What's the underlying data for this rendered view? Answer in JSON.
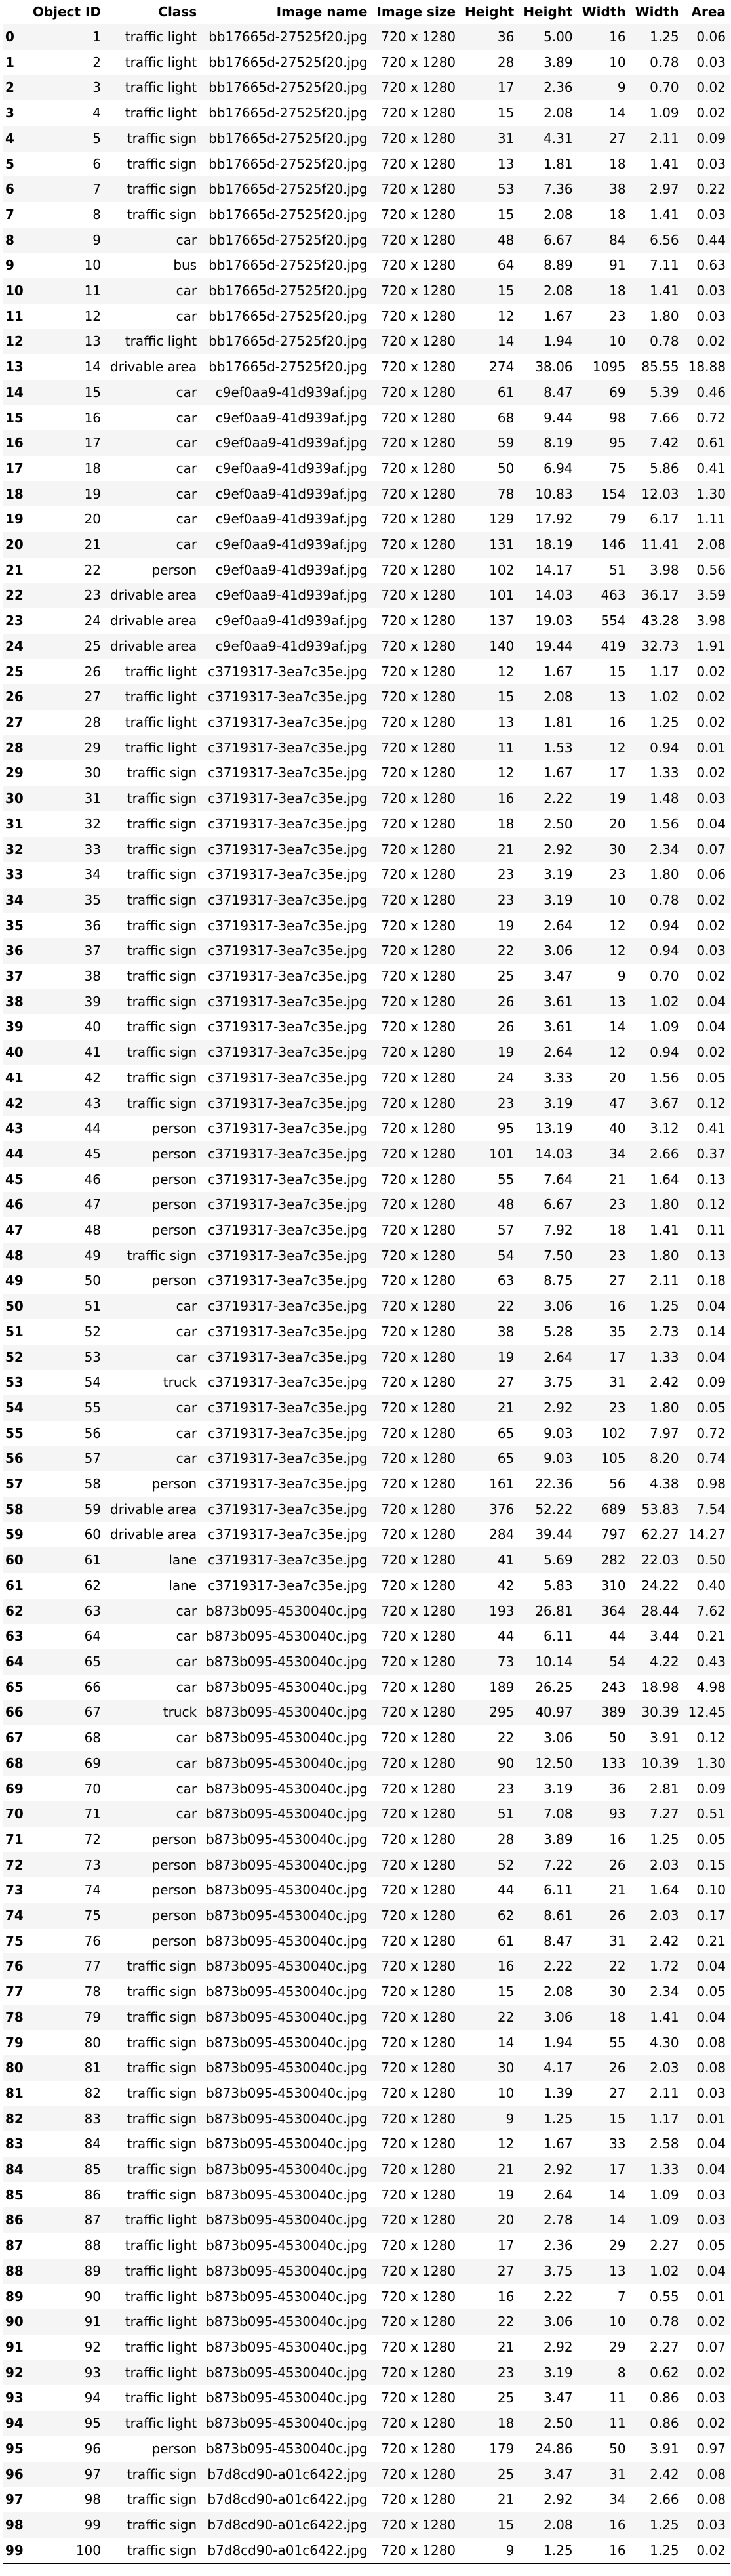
{
  "table": {
    "columns": [
      "",
      "Object ID",
      "Class",
      "Image name",
      "Image size",
      "Height",
      "Height",
      "Width",
      "Width",
      "Area"
    ],
    "rows": [
      [
        "0",
        "1",
        "traffic light",
        "bb17665d-27525f20.jpg",
        "720 x 1280",
        "36",
        "5.00",
        "16",
        "1.25",
        "0.06"
      ],
      [
        "1",
        "2",
        "traffic light",
        "bb17665d-27525f20.jpg",
        "720 x 1280",
        "28",
        "3.89",
        "10",
        "0.78",
        "0.03"
      ],
      [
        "2",
        "3",
        "traffic light",
        "bb17665d-27525f20.jpg",
        "720 x 1280",
        "17",
        "2.36",
        "9",
        "0.70",
        "0.02"
      ],
      [
        "3",
        "4",
        "traffic light",
        "bb17665d-27525f20.jpg",
        "720 x 1280",
        "15",
        "2.08",
        "14",
        "1.09",
        "0.02"
      ],
      [
        "4",
        "5",
        "traffic sign",
        "bb17665d-27525f20.jpg",
        "720 x 1280",
        "31",
        "4.31",
        "27",
        "2.11",
        "0.09"
      ],
      [
        "5",
        "6",
        "traffic sign",
        "bb17665d-27525f20.jpg",
        "720 x 1280",
        "13",
        "1.81",
        "18",
        "1.41",
        "0.03"
      ],
      [
        "6",
        "7",
        "traffic sign",
        "bb17665d-27525f20.jpg",
        "720 x 1280",
        "53",
        "7.36",
        "38",
        "2.97",
        "0.22"
      ],
      [
        "7",
        "8",
        "traffic sign",
        "bb17665d-27525f20.jpg",
        "720 x 1280",
        "15",
        "2.08",
        "18",
        "1.41",
        "0.03"
      ],
      [
        "8",
        "9",
        "car",
        "bb17665d-27525f20.jpg",
        "720 x 1280",
        "48",
        "6.67",
        "84",
        "6.56",
        "0.44"
      ],
      [
        "9",
        "10",
        "bus",
        "bb17665d-27525f20.jpg",
        "720 x 1280",
        "64",
        "8.89",
        "91",
        "7.11",
        "0.63"
      ],
      [
        "10",
        "11",
        "car",
        "bb17665d-27525f20.jpg",
        "720 x 1280",
        "15",
        "2.08",
        "18",
        "1.41",
        "0.03"
      ],
      [
        "11",
        "12",
        "car",
        "bb17665d-27525f20.jpg",
        "720 x 1280",
        "12",
        "1.67",
        "23",
        "1.80",
        "0.03"
      ],
      [
        "12",
        "13",
        "traffic light",
        "bb17665d-27525f20.jpg",
        "720 x 1280",
        "14",
        "1.94",
        "10",
        "0.78",
        "0.02"
      ],
      [
        "13",
        "14",
        "drivable area",
        "bb17665d-27525f20.jpg",
        "720 x 1280",
        "274",
        "38.06",
        "1095",
        "85.55",
        "18.88"
      ],
      [
        "14",
        "15",
        "car",
        "c9ef0aa9-41d939af.jpg",
        "720 x 1280",
        "61",
        "8.47",
        "69",
        "5.39",
        "0.46"
      ],
      [
        "15",
        "16",
        "car",
        "c9ef0aa9-41d939af.jpg",
        "720 x 1280",
        "68",
        "9.44",
        "98",
        "7.66",
        "0.72"
      ],
      [
        "16",
        "17",
        "car",
        "c9ef0aa9-41d939af.jpg",
        "720 x 1280",
        "59",
        "8.19",
        "95",
        "7.42",
        "0.61"
      ],
      [
        "17",
        "18",
        "car",
        "c9ef0aa9-41d939af.jpg",
        "720 x 1280",
        "50",
        "6.94",
        "75",
        "5.86",
        "0.41"
      ],
      [
        "18",
        "19",
        "car",
        "c9ef0aa9-41d939af.jpg",
        "720 x 1280",
        "78",
        "10.83",
        "154",
        "12.03",
        "1.30"
      ],
      [
        "19",
        "20",
        "car",
        "c9ef0aa9-41d939af.jpg",
        "720 x 1280",
        "129",
        "17.92",
        "79",
        "6.17",
        "1.11"
      ],
      [
        "20",
        "21",
        "car",
        "c9ef0aa9-41d939af.jpg",
        "720 x 1280",
        "131",
        "18.19",
        "146",
        "11.41",
        "2.08"
      ],
      [
        "21",
        "22",
        "person",
        "c9ef0aa9-41d939af.jpg",
        "720 x 1280",
        "102",
        "14.17",
        "51",
        "3.98",
        "0.56"
      ],
      [
        "22",
        "23",
        "drivable area",
        "c9ef0aa9-41d939af.jpg",
        "720 x 1280",
        "101",
        "14.03",
        "463",
        "36.17",
        "3.59"
      ],
      [
        "23",
        "24",
        "drivable area",
        "c9ef0aa9-41d939af.jpg",
        "720 x 1280",
        "137",
        "19.03",
        "554",
        "43.28",
        "3.98"
      ],
      [
        "24",
        "25",
        "drivable area",
        "c9ef0aa9-41d939af.jpg",
        "720 x 1280",
        "140",
        "19.44",
        "419",
        "32.73",
        "1.91"
      ],
      [
        "25",
        "26",
        "traffic light",
        "c3719317-3ea7c35e.jpg",
        "720 x 1280",
        "12",
        "1.67",
        "15",
        "1.17",
        "0.02"
      ],
      [
        "26",
        "27",
        "traffic light",
        "c3719317-3ea7c35e.jpg",
        "720 x 1280",
        "15",
        "2.08",
        "13",
        "1.02",
        "0.02"
      ],
      [
        "27",
        "28",
        "traffic light",
        "c3719317-3ea7c35e.jpg",
        "720 x 1280",
        "13",
        "1.81",
        "16",
        "1.25",
        "0.02"
      ],
      [
        "28",
        "29",
        "traffic light",
        "c3719317-3ea7c35e.jpg",
        "720 x 1280",
        "11",
        "1.53",
        "12",
        "0.94",
        "0.01"
      ],
      [
        "29",
        "30",
        "traffic sign",
        "c3719317-3ea7c35e.jpg",
        "720 x 1280",
        "12",
        "1.67",
        "17",
        "1.33",
        "0.02"
      ],
      [
        "30",
        "31",
        "traffic sign",
        "c3719317-3ea7c35e.jpg",
        "720 x 1280",
        "16",
        "2.22",
        "19",
        "1.48",
        "0.03"
      ],
      [
        "31",
        "32",
        "traffic sign",
        "c3719317-3ea7c35e.jpg",
        "720 x 1280",
        "18",
        "2.50",
        "20",
        "1.56",
        "0.04"
      ],
      [
        "32",
        "33",
        "traffic sign",
        "c3719317-3ea7c35e.jpg",
        "720 x 1280",
        "21",
        "2.92",
        "30",
        "2.34",
        "0.07"
      ],
      [
        "33",
        "34",
        "traffic sign",
        "c3719317-3ea7c35e.jpg",
        "720 x 1280",
        "23",
        "3.19",
        "23",
        "1.80",
        "0.06"
      ],
      [
        "34",
        "35",
        "traffic sign",
        "c3719317-3ea7c35e.jpg",
        "720 x 1280",
        "23",
        "3.19",
        "10",
        "0.78",
        "0.02"
      ],
      [
        "35",
        "36",
        "traffic sign",
        "c3719317-3ea7c35e.jpg",
        "720 x 1280",
        "19",
        "2.64",
        "12",
        "0.94",
        "0.02"
      ],
      [
        "36",
        "37",
        "traffic sign",
        "c3719317-3ea7c35e.jpg",
        "720 x 1280",
        "22",
        "3.06",
        "12",
        "0.94",
        "0.03"
      ],
      [
        "37",
        "38",
        "traffic sign",
        "c3719317-3ea7c35e.jpg",
        "720 x 1280",
        "25",
        "3.47",
        "9",
        "0.70",
        "0.02"
      ],
      [
        "38",
        "39",
        "traffic sign",
        "c3719317-3ea7c35e.jpg",
        "720 x 1280",
        "26",
        "3.61",
        "13",
        "1.02",
        "0.04"
      ],
      [
        "39",
        "40",
        "traffic sign",
        "c3719317-3ea7c35e.jpg",
        "720 x 1280",
        "26",
        "3.61",
        "14",
        "1.09",
        "0.04"
      ],
      [
        "40",
        "41",
        "traffic sign",
        "c3719317-3ea7c35e.jpg",
        "720 x 1280",
        "19",
        "2.64",
        "12",
        "0.94",
        "0.02"
      ],
      [
        "41",
        "42",
        "traffic sign",
        "c3719317-3ea7c35e.jpg",
        "720 x 1280",
        "24",
        "3.33",
        "20",
        "1.56",
        "0.05"
      ],
      [
        "42",
        "43",
        "traffic sign",
        "c3719317-3ea7c35e.jpg",
        "720 x 1280",
        "23",
        "3.19",
        "47",
        "3.67",
        "0.12"
      ],
      [
        "43",
        "44",
        "person",
        "c3719317-3ea7c35e.jpg",
        "720 x 1280",
        "95",
        "13.19",
        "40",
        "3.12",
        "0.41"
      ],
      [
        "44",
        "45",
        "person",
        "c3719317-3ea7c35e.jpg",
        "720 x 1280",
        "101",
        "14.03",
        "34",
        "2.66",
        "0.37"
      ],
      [
        "45",
        "46",
        "person",
        "c3719317-3ea7c35e.jpg",
        "720 x 1280",
        "55",
        "7.64",
        "21",
        "1.64",
        "0.13"
      ],
      [
        "46",
        "47",
        "person",
        "c3719317-3ea7c35e.jpg",
        "720 x 1280",
        "48",
        "6.67",
        "23",
        "1.80",
        "0.12"
      ],
      [
        "47",
        "48",
        "person",
        "c3719317-3ea7c35e.jpg",
        "720 x 1280",
        "57",
        "7.92",
        "18",
        "1.41",
        "0.11"
      ],
      [
        "48",
        "49",
        "traffic sign",
        "c3719317-3ea7c35e.jpg",
        "720 x 1280",
        "54",
        "7.50",
        "23",
        "1.80",
        "0.13"
      ],
      [
        "49",
        "50",
        "person",
        "c3719317-3ea7c35e.jpg",
        "720 x 1280",
        "63",
        "8.75",
        "27",
        "2.11",
        "0.18"
      ],
      [
        "50",
        "51",
        "car",
        "c3719317-3ea7c35e.jpg",
        "720 x 1280",
        "22",
        "3.06",
        "16",
        "1.25",
        "0.04"
      ],
      [
        "51",
        "52",
        "car",
        "c3719317-3ea7c35e.jpg",
        "720 x 1280",
        "38",
        "5.28",
        "35",
        "2.73",
        "0.14"
      ],
      [
        "52",
        "53",
        "car",
        "c3719317-3ea7c35e.jpg",
        "720 x 1280",
        "19",
        "2.64",
        "17",
        "1.33",
        "0.04"
      ],
      [
        "53",
        "54",
        "truck",
        "c3719317-3ea7c35e.jpg",
        "720 x 1280",
        "27",
        "3.75",
        "31",
        "2.42",
        "0.09"
      ],
      [
        "54",
        "55",
        "car",
        "c3719317-3ea7c35e.jpg",
        "720 x 1280",
        "21",
        "2.92",
        "23",
        "1.80",
        "0.05"
      ],
      [
        "55",
        "56",
        "car",
        "c3719317-3ea7c35e.jpg",
        "720 x 1280",
        "65",
        "9.03",
        "102",
        "7.97",
        "0.72"
      ],
      [
        "56",
        "57",
        "car",
        "c3719317-3ea7c35e.jpg",
        "720 x 1280",
        "65",
        "9.03",
        "105",
        "8.20",
        "0.74"
      ],
      [
        "57",
        "58",
        "person",
        "c3719317-3ea7c35e.jpg",
        "720 x 1280",
        "161",
        "22.36",
        "56",
        "4.38",
        "0.98"
      ],
      [
        "58",
        "59",
        "drivable area",
        "c3719317-3ea7c35e.jpg",
        "720 x 1280",
        "376",
        "52.22",
        "689",
        "53.83",
        "7.54"
      ],
      [
        "59",
        "60",
        "drivable area",
        "c3719317-3ea7c35e.jpg",
        "720 x 1280",
        "284",
        "39.44",
        "797",
        "62.27",
        "14.27"
      ],
      [
        "60",
        "61",
        "lane",
        "c3719317-3ea7c35e.jpg",
        "720 x 1280",
        "41",
        "5.69",
        "282",
        "22.03",
        "0.50"
      ],
      [
        "61",
        "62",
        "lane",
        "c3719317-3ea7c35e.jpg",
        "720 x 1280",
        "42",
        "5.83",
        "310",
        "24.22",
        "0.40"
      ],
      [
        "62",
        "63",
        "car",
        "b873b095-4530040c.jpg",
        "720 x 1280",
        "193",
        "26.81",
        "364",
        "28.44",
        "7.62"
      ],
      [
        "63",
        "64",
        "car",
        "b873b095-4530040c.jpg",
        "720 x 1280",
        "44",
        "6.11",
        "44",
        "3.44",
        "0.21"
      ],
      [
        "64",
        "65",
        "car",
        "b873b095-4530040c.jpg",
        "720 x 1280",
        "73",
        "10.14",
        "54",
        "4.22",
        "0.43"
      ],
      [
        "65",
        "66",
        "car",
        "b873b095-4530040c.jpg",
        "720 x 1280",
        "189",
        "26.25",
        "243",
        "18.98",
        "4.98"
      ],
      [
        "66",
        "67",
        "truck",
        "b873b095-4530040c.jpg",
        "720 x 1280",
        "295",
        "40.97",
        "389",
        "30.39",
        "12.45"
      ],
      [
        "67",
        "68",
        "car",
        "b873b095-4530040c.jpg",
        "720 x 1280",
        "22",
        "3.06",
        "50",
        "3.91",
        "0.12"
      ],
      [
        "68",
        "69",
        "car",
        "b873b095-4530040c.jpg",
        "720 x 1280",
        "90",
        "12.50",
        "133",
        "10.39",
        "1.30"
      ],
      [
        "69",
        "70",
        "car",
        "b873b095-4530040c.jpg",
        "720 x 1280",
        "23",
        "3.19",
        "36",
        "2.81",
        "0.09"
      ],
      [
        "70",
        "71",
        "car",
        "b873b095-4530040c.jpg",
        "720 x 1280",
        "51",
        "7.08",
        "93",
        "7.27",
        "0.51"
      ],
      [
        "71",
        "72",
        "person",
        "b873b095-4530040c.jpg",
        "720 x 1280",
        "28",
        "3.89",
        "16",
        "1.25",
        "0.05"
      ],
      [
        "72",
        "73",
        "person",
        "b873b095-4530040c.jpg",
        "720 x 1280",
        "52",
        "7.22",
        "26",
        "2.03",
        "0.15"
      ],
      [
        "73",
        "74",
        "person",
        "b873b095-4530040c.jpg",
        "720 x 1280",
        "44",
        "6.11",
        "21",
        "1.64",
        "0.10"
      ],
      [
        "74",
        "75",
        "person",
        "b873b095-4530040c.jpg",
        "720 x 1280",
        "62",
        "8.61",
        "26",
        "2.03",
        "0.17"
      ],
      [
        "75",
        "76",
        "person",
        "b873b095-4530040c.jpg",
        "720 x 1280",
        "61",
        "8.47",
        "31",
        "2.42",
        "0.21"
      ],
      [
        "76",
        "77",
        "traffic sign",
        "b873b095-4530040c.jpg",
        "720 x 1280",
        "16",
        "2.22",
        "22",
        "1.72",
        "0.04"
      ],
      [
        "77",
        "78",
        "traffic sign",
        "b873b095-4530040c.jpg",
        "720 x 1280",
        "15",
        "2.08",
        "30",
        "2.34",
        "0.05"
      ],
      [
        "78",
        "79",
        "traffic sign",
        "b873b095-4530040c.jpg",
        "720 x 1280",
        "22",
        "3.06",
        "18",
        "1.41",
        "0.04"
      ],
      [
        "79",
        "80",
        "traffic sign",
        "b873b095-4530040c.jpg",
        "720 x 1280",
        "14",
        "1.94",
        "55",
        "4.30",
        "0.08"
      ],
      [
        "80",
        "81",
        "traffic sign",
        "b873b095-4530040c.jpg",
        "720 x 1280",
        "30",
        "4.17",
        "26",
        "2.03",
        "0.08"
      ],
      [
        "81",
        "82",
        "traffic sign",
        "b873b095-4530040c.jpg",
        "720 x 1280",
        "10",
        "1.39",
        "27",
        "2.11",
        "0.03"
      ],
      [
        "82",
        "83",
        "traffic sign",
        "b873b095-4530040c.jpg",
        "720 x 1280",
        "9",
        "1.25",
        "15",
        "1.17",
        "0.01"
      ],
      [
        "83",
        "84",
        "traffic sign",
        "b873b095-4530040c.jpg",
        "720 x 1280",
        "12",
        "1.67",
        "33",
        "2.58",
        "0.04"
      ],
      [
        "84",
        "85",
        "traffic sign",
        "b873b095-4530040c.jpg",
        "720 x 1280",
        "21",
        "2.92",
        "17",
        "1.33",
        "0.04"
      ],
      [
        "85",
        "86",
        "traffic sign",
        "b873b095-4530040c.jpg",
        "720 x 1280",
        "19",
        "2.64",
        "14",
        "1.09",
        "0.03"
      ],
      [
        "86",
        "87",
        "traffic light",
        "b873b095-4530040c.jpg",
        "720 x 1280",
        "20",
        "2.78",
        "14",
        "1.09",
        "0.03"
      ],
      [
        "87",
        "88",
        "traffic light",
        "b873b095-4530040c.jpg",
        "720 x 1280",
        "17",
        "2.36",
        "29",
        "2.27",
        "0.05"
      ],
      [
        "88",
        "89",
        "traffic light",
        "b873b095-4530040c.jpg",
        "720 x 1280",
        "27",
        "3.75",
        "13",
        "1.02",
        "0.04"
      ],
      [
        "89",
        "90",
        "traffic light",
        "b873b095-4530040c.jpg",
        "720 x 1280",
        "16",
        "2.22",
        "7",
        "0.55",
        "0.01"
      ],
      [
        "90",
        "91",
        "traffic light",
        "b873b095-4530040c.jpg",
        "720 x 1280",
        "22",
        "3.06",
        "10",
        "0.78",
        "0.02"
      ],
      [
        "91",
        "92",
        "traffic light",
        "b873b095-4530040c.jpg",
        "720 x 1280",
        "21",
        "2.92",
        "29",
        "2.27",
        "0.07"
      ],
      [
        "92",
        "93",
        "traffic light",
        "b873b095-4530040c.jpg",
        "720 x 1280",
        "23",
        "3.19",
        "8",
        "0.62",
        "0.02"
      ],
      [
        "93",
        "94",
        "traffic light",
        "b873b095-4530040c.jpg",
        "720 x 1280",
        "25",
        "3.47",
        "11",
        "0.86",
        "0.03"
      ],
      [
        "94",
        "95",
        "traffic light",
        "b873b095-4530040c.jpg",
        "720 x 1280",
        "18",
        "2.50",
        "11",
        "0.86",
        "0.02"
      ],
      [
        "95",
        "96",
        "person",
        "b873b095-4530040c.jpg",
        "720 x 1280",
        "179",
        "24.86",
        "50",
        "3.91",
        "0.97"
      ],
      [
        "96",
        "97",
        "traffic sign",
        "b7d8cd90-a01c6422.jpg",
        "720 x 1280",
        "25",
        "3.47",
        "31",
        "2.42",
        "0.08"
      ],
      [
        "97",
        "98",
        "traffic sign",
        "b7d8cd90-a01c6422.jpg",
        "720 x 1280",
        "21",
        "2.92",
        "34",
        "2.66",
        "0.08"
      ],
      [
        "98",
        "99",
        "traffic sign",
        "b7d8cd90-a01c6422.jpg",
        "720 x 1280",
        "15",
        "2.08",
        "16",
        "1.25",
        "0.03"
      ],
      [
        "99",
        "100",
        "traffic sign",
        "b7d8cd90-a01c6422.jpg",
        "720 x 1280",
        "9",
        "1.25",
        "16",
        "1.25",
        "0.02"
      ]
    ]
  }
}
